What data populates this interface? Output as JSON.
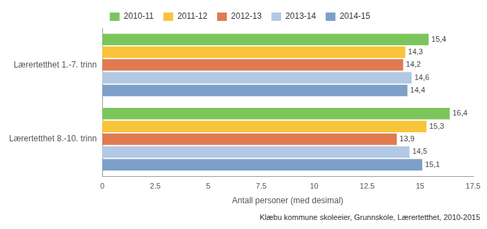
{
  "chart_data": {
    "type": "bar",
    "orientation": "horizontal",
    "categories": [
      "Lærertetthet 1.-7. trinn",
      "Lærertetthet 8.-10. trinn"
    ],
    "series": [
      {
        "name": "2010-11",
        "color": "#7cc55c",
        "values": [
          15.4,
          16.4
        ],
        "value_labels": [
          "15,4",
          "16,4"
        ]
      },
      {
        "name": "2011-12",
        "color": "#f8c43a",
        "values": [
          14.3,
          15.3
        ],
        "value_labels": [
          "14,3",
          "15,3"
        ]
      },
      {
        "name": "2012-13",
        "color": "#e07b50",
        "values": [
          14.2,
          13.9
        ],
        "value_labels": [
          "14,2",
          "13,9"
        ]
      },
      {
        "name": "2013-14",
        "color": "#b3c9e3",
        "values": [
          14.6,
          14.5
        ],
        "value_labels": [
          "14,6",
          "14,5"
        ]
      },
      {
        "name": "2014-15",
        "color": "#7d9fc8",
        "values": [
          14.4,
          15.1
        ],
        "value_labels": [
          "14,4",
          "15,1"
        ]
      }
    ],
    "xlabel": "Antall personer (med desimal)",
    "xlim": [
      0,
      17.5
    ],
    "xticks": [
      0,
      2.5,
      5,
      7.5,
      10,
      12.5,
      15,
      17.5
    ],
    "grid": false,
    "legend": "top",
    "data_labels": true,
    "source": "Klæbu kommune skoleeier, Grunnskole, Lærertetthet, 2010-2015"
  }
}
